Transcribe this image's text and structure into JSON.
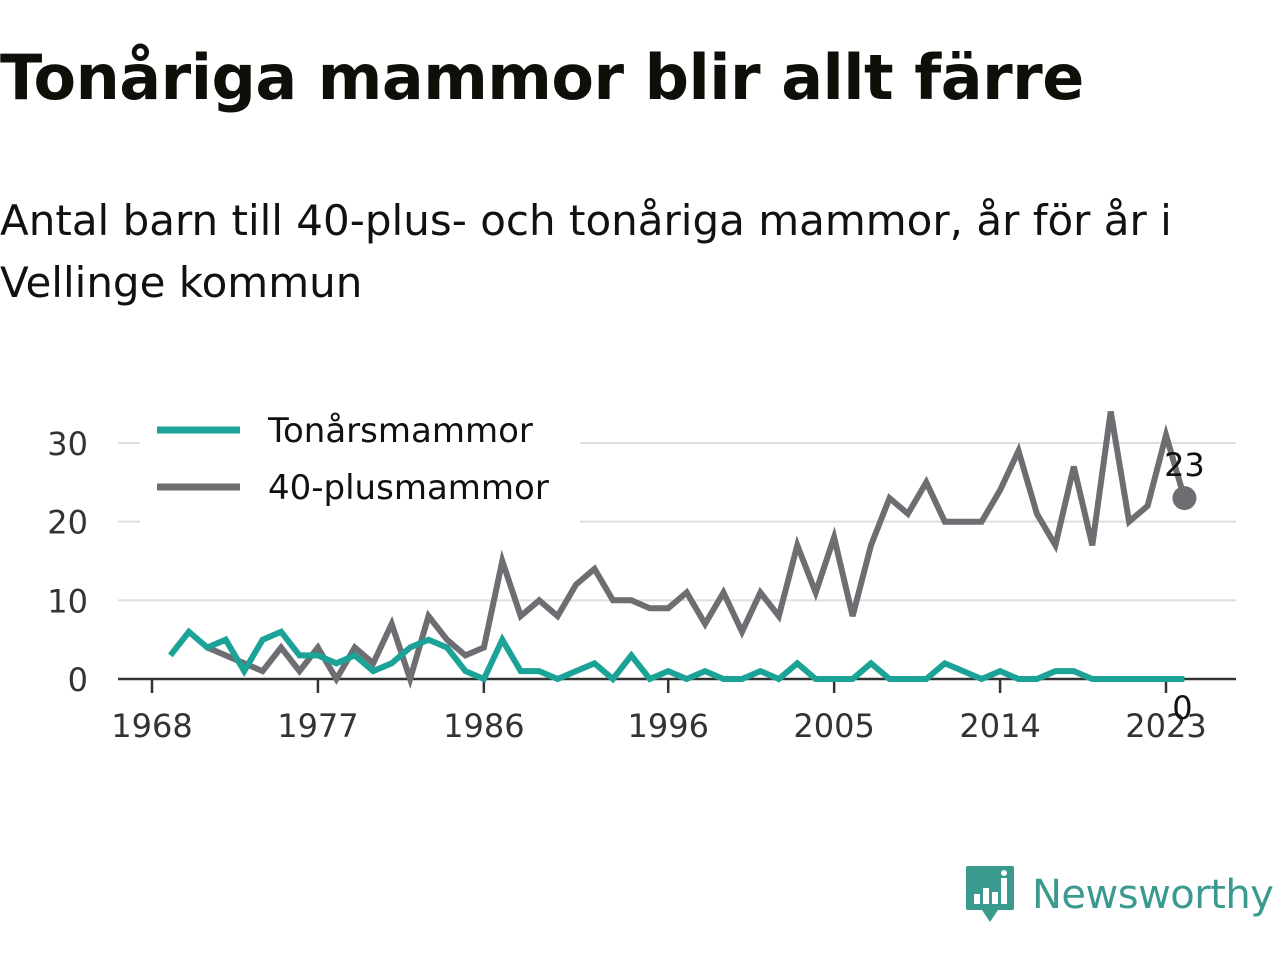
{
  "title": "Tonåriga mammor blir allt färre",
  "subtitle": "Antal barn till 40-plus- och tonåriga mammor, år för år i Vellinge kommun",
  "brand": {
    "name": "Newsworthy",
    "icon": "newsworthy-logo-icon",
    "color": "#3a9a8e"
  },
  "chart_data": {
    "type": "line",
    "x_ticks": [
      1968,
      1977,
      1986,
      1996,
      2005,
      2014,
      2023
    ],
    "y_ticks": [
      0,
      10,
      20,
      30
    ],
    "ylim": [
      0,
      35
    ],
    "xlim": [
      1968,
      2027
    ],
    "grid": true,
    "legend_position": "top-left",
    "x": [
      1969,
      1970,
      1971,
      1972,
      1973,
      1974,
      1975,
      1976,
      1977,
      1978,
      1979,
      1980,
      1981,
      1982,
      1983,
      1984,
      1985,
      1986,
      1987,
      1988,
      1989,
      1990,
      1991,
      1992,
      1993,
      1994,
      1995,
      1996,
      1997,
      1998,
      1999,
      2000,
      2001,
      2002,
      2003,
      2004,
      2005,
      2006,
      2007,
      2008,
      2009,
      2010,
      2011,
      2012,
      2013,
      2014,
      2015,
      2016,
      2017,
      2018,
      2019,
      2020,
      2021,
      2022,
      2023,
      2024
    ],
    "series": [
      {
        "name": "Tonårsmammor",
        "color": "#1aa396",
        "values": [
          3,
          6,
          4,
          5,
          1,
          5,
          6,
          3,
          3,
          2,
          3,
          1,
          2,
          4,
          5,
          4,
          1,
          0,
          5,
          1,
          1,
          0,
          1,
          2,
          0,
          3,
          0,
          1,
          0,
          1,
          0,
          0,
          1,
          0,
          2,
          0,
          0,
          0,
          2,
          0,
          0,
          0,
          2,
          1,
          0,
          1,
          0,
          0,
          1,
          1,
          0,
          0,
          0,
          0,
          0,
          0
        ],
        "end_label": "0"
      },
      {
        "name": "40-plusmammor",
        "color": "#6d6d72",
        "values": [
          null,
          null,
          4,
          3,
          2,
          1,
          4,
          1,
          4,
          0,
          4,
          2,
          7,
          0,
          8,
          5,
          3,
          4,
          15,
          8,
          10,
          8,
          12,
          14,
          10,
          10,
          9,
          9,
          11,
          7,
          11,
          6,
          11,
          8,
          17,
          11,
          18,
          8,
          17,
          23,
          21,
          25,
          20,
          20,
          20,
          24,
          29,
          21,
          17,
          27,
          17,
          34,
          20,
          22,
          31,
          23
        ],
        "end_label": "23"
      }
    ]
  }
}
